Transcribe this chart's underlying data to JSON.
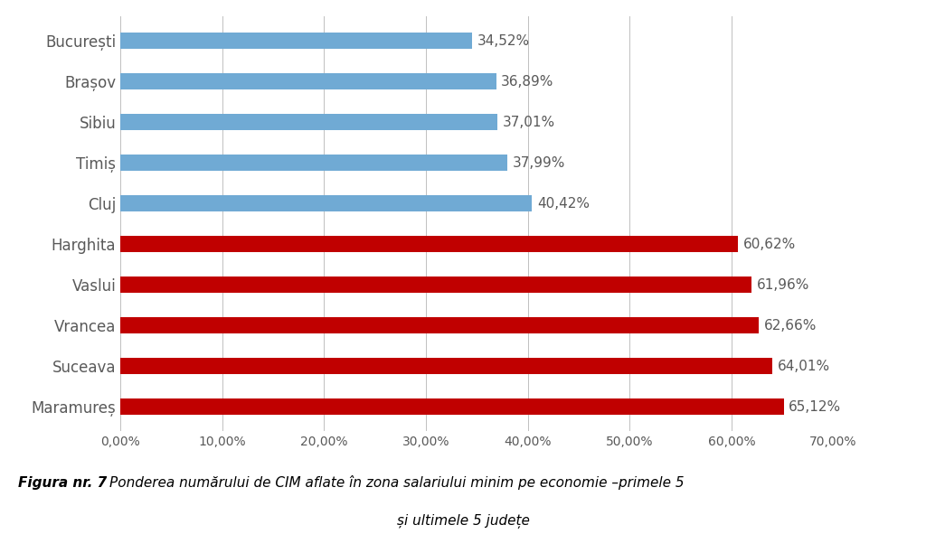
{
  "categories": [
    "Maramureș",
    "Suceava",
    "Vrancea",
    "Vaslui",
    "Harghita",
    "Cluj",
    "Timiș",
    "Sibiu",
    "Brașov",
    "București"
  ],
  "values": [
    65.12,
    64.01,
    62.66,
    61.96,
    60.62,
    40.42,
    37.99,
    37.01,
    36.89,
    34.52
  ],
  "colors": [
    "#C00000",
    "#C00000",
    "#C00000",
    "#C00000",
    "#C00000",
    "#70AAD4",
    "#70AAD4",
    "#70AAD4",
    "#70AAD4",
    "#70AAD4"
  ],
  "label_texts": [
    "65,12%",
    "64,01%",
    "62,66%",
    "61,96%",
    "60,62%",
    "40,42%",
    "37,99%",
    "37,01%",
    "36,89%",
    "34,52%"
  ],
  "xlim": [
    0,
    70
  ],
  "xticks": [
    0,
    10,
    20,
    30,
    40,
    50,
    60,
    70
  ],
  "xtick_labels": [
    "0,00%",
    "10,00%",
    "20,00%",
    "30,00%",
    "40,00%",
    "50,00%",
    "60,00%",
    "70,00%"
  ],
  "background_color": "#FFFFFF",
  "bar_height": 0.4,
  "caption_bold": "Figura nr. 7 ",
  "caption_normal": "Ponderea numărului de CIM aflate în zona salariului minim pe economie –primele 5",
  "caption_line2": "și ultimele 5 județe",
  "label_fontsize": 11,
  "tick_fontsize": 10,
  "ytick_fontsize": 12,
  "label_color": "#595959",
  "ytick_color": "#595959",
  "xtick_color": "#595959"
}
